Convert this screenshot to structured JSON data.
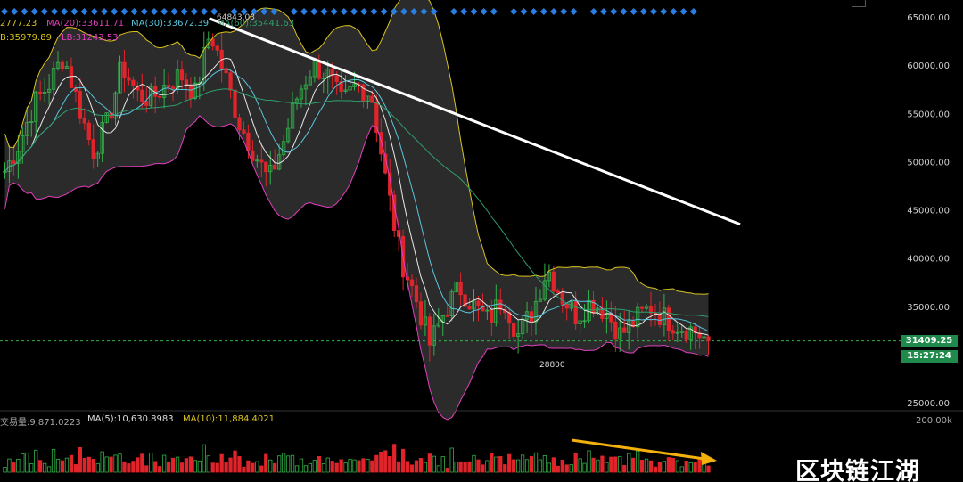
{
  "indicators": {
    "ma5_label": "2777.23",
    "ma20_label": "MA(20):33611.71",
    "ma30_label": "MA(30):33672.39",
    "ma60_label": "MA(60):35441.63",
    "ub_label": "B:35979.89",
    "lb_label": "LB:31243.53"
  },
  "high_marker": "64843.03",
  "low_marker": "28800",
  "current_price": "31409.25",
  "countdown": "15:27:24",
  "volume_indicators": {
    "vol_label": "交易量:9,871.0223",
    "ma5_label": "MA(5):10,630.8983",
    "ma10_label": "MA(10):11,884.4021"
  },
  "volume_axis_label": "200.00k",
  "watermark": "区块链江湖",
  "colors": {
    "up": "#31b24a",
    "down": "#e0242b",
    "ma_yellow": "#d9c31e",
    "ma_pink": "#e23fbf",
    "ma_blue": "#59c6dc",
    "ma_green": "#2f9e6b",
    "band_fill": "#2b2b2b",
    "trendline": "#ffffff",
    "arrow": "#f4b00b",
    "diamond": "#2a7de1"
  },
  "chart_data": {
    "type": "candlestick",
    "y_axis_ticks": [
      65000,
      60000,
      55000,
      50000,
      45000,
      40000,
      35000,
      25000
    ],
    "y_axis_labels": [
      "65000.00",
      "60000.00",
      "55000.00",
      "50000.00",
      "45000.00",
      "40000.00",
      "35000.00",
      "25000.00"
    ],
    "ylim": [
      25000,
      66000
    ],
    "price_path": [
      49000,
      52000,
      56000,
      58000,
      61000,
      56000,
      51000,
      54000,
      60000,
      57000,
      56500,
      58000,
      59000,
      57000,
      63500,
      59000,
      54000,
      51000,
      48000,
      52000,
      57000,
      60000,
      59000,
      56000,
      58000,
      57000,
      48000,
      40000,
      36000,
      31000,
      34500,
      37000,
      35000,
      33500,
      36000,
      32000,
      34500,
      39000,
      36000,
      34000,
      35500,
      34500,
      32000,
      33500,
      35000,
      33800,
      33000,
      32500,
      31409
    ],
    "trendline": {
      "from": [
        14,
        64843
      ],
      "to": [
        50,
        43500
      ]
    },
    "volume_trend": "decreasing"
  }
}
